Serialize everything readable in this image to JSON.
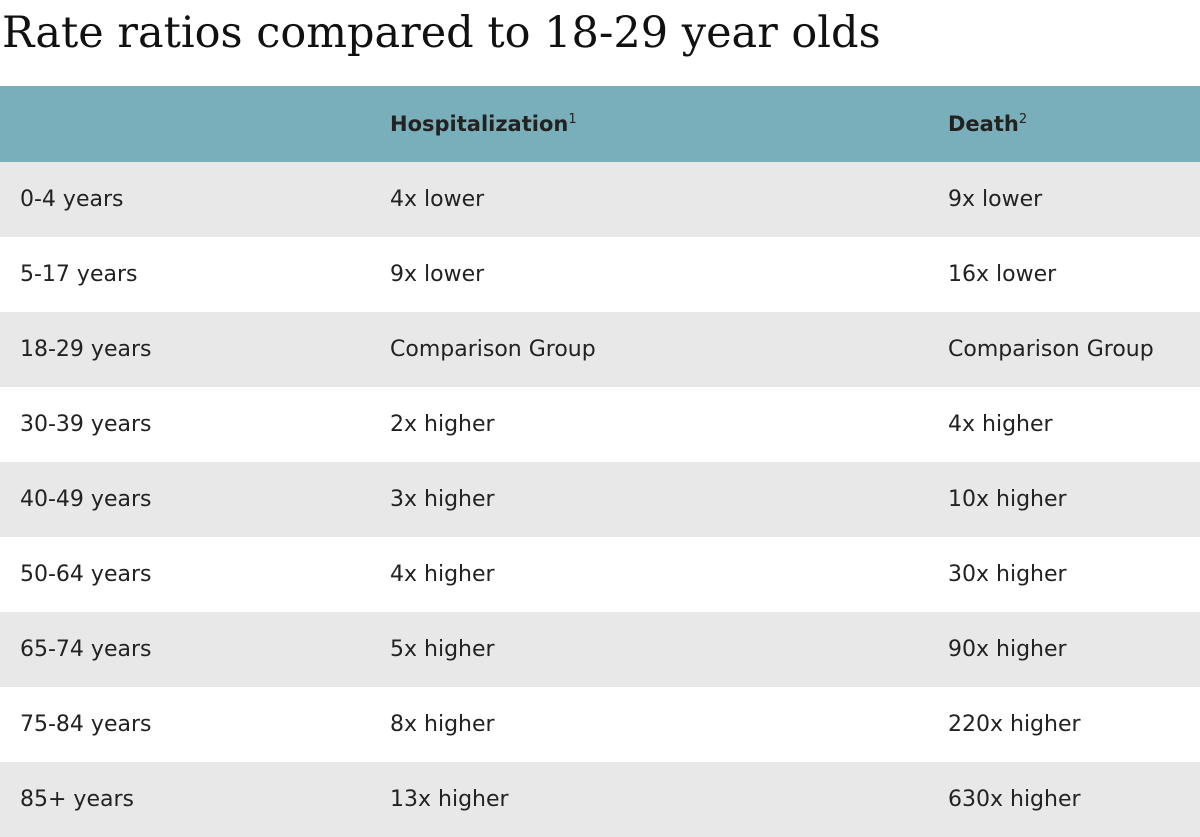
{
  "title": "Rate ratios compared to 18-29 year olds",
  "table": {
    "header": [
      {
        "label": "Hospitalization",
        "note": "1"
      },
      {
        "label": "Death",
        "note": "2"
      }
    ],
    "rows": [
      [
        "0-4 years",
        "4x lower",
        "9x lower"
      ],
      [
        "5-17 years",
        "9x lower",
        "16x lower"
      ],
      [
        "18-29 years",
        "Comparison Group",
        "Comparison Group"
      ],
      [
        "30-39 years",
        "2x higher",
        "4x higher"
      ],
      [
        "40-49 years",
        "3x higher",
        "10x higher"
      ],
      [
        "50-64 years",
        "4x higher",
        "30x higher"
      ],
      [
        "65-74 years",
        "5x higher",
        "90x higher"
      ],
      [
        "75-84 years",
        "8x higher",
        "220x higher"
      ],
      [
        "85+ years",
        "13x higher",
        "630x higher"
      ]
    ]
  }
}
